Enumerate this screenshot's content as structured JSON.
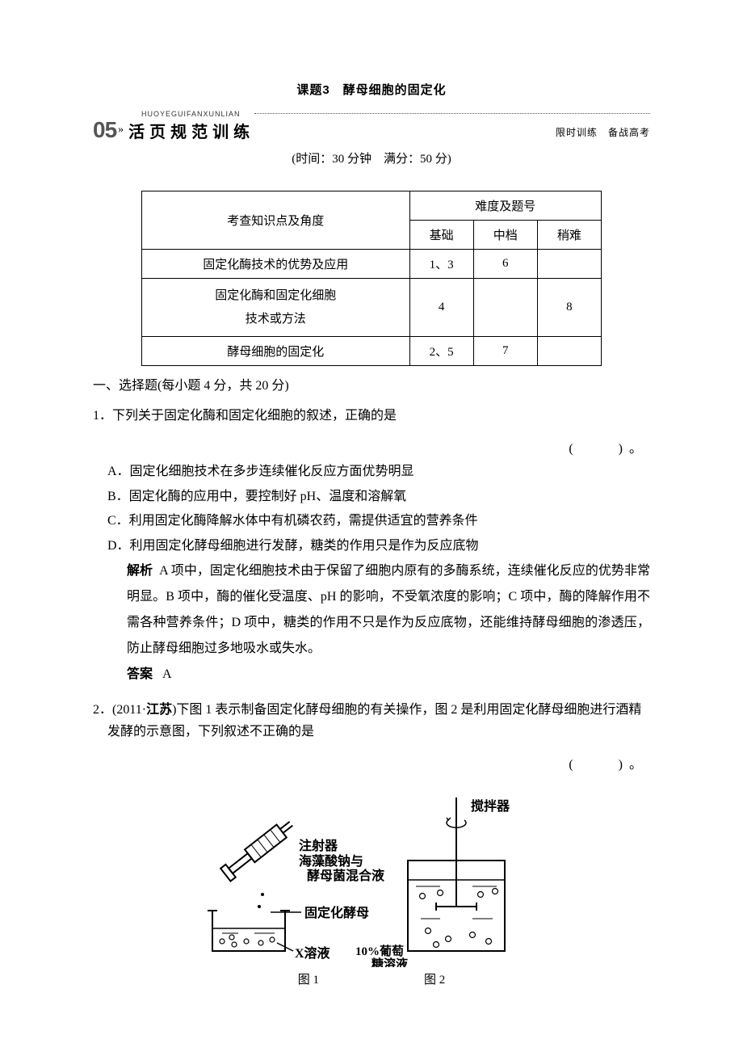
{
  "title": "课题3　酵母细胞的固定化",
  "header": {
    "num": "05",
    "arrow": "»",
    "pinyin": "HUOYEGUIFANXUNLIAN",
    "main": "活页规范训练",
    "right": "限时训练　备战高考"
  },
  "timing": "(时间：30 分钟　满分：50 分)",
  "table": {
    "col1_header": "考查知识点及角度",
    "col2_header": "难度及题号",
    "subheaders": [
      "基础",
      "中档",
      "稍难"
    ],
    "rows": [
      {
        "topic": "固定化酶技术的优势及应用",
        "cells": [
          "1、3",
          "6",
          ""
        ]
      },
      {
        "topic": "固定化酶和固定化细胞\n技术或方法",
        "cells": [
          "4",
          "",
          "8"
        ]
      },
      {
        "topic": "酵母细胞的固定化",
        "cells": [
          "2、5",
          "7",
          ""
        ]
      }
    ]
  },
  "section1": "一、选择题(每小题 4 分，共 20 分)",
  "q1": {
    "stem": "1．下列关于固定化酶和固定化细胞的叙述，正确的是",
    "paren": "(　　)。",
    "options": {
      "A": "A．固定化细胞技术在多步连续催化反应方面优势明显",
      "B": "B．固定化酶的应用中，要控制好 pH、温度和溶解氧",
      "C": "C．利用固定化酶降解水体中有机磷农药，需提供适宜的营养条件",
      "D": "D．利用固定化酵母细胞进行发酵，糖类的作用只是作为反应底物"
    },
    "explain_label": "解析",
    "explain": "A 项中，固定化细胞技术由于保留了细胞内原有的多酶系统，连续催化反应的优势非常明显。B 项中，酶的催化受温度、pH 的影响，不受氧浓度的影响；C 项中，酶的降解作用不需各种营养条件；D 项中，糖类的作用不只是作为反应底物，还能维持酵母细胞的渗透压，防止酵母细胞过多地吸水或失水。",
    "answer_label": "答案",
    "answer": "A"
  },
  "q2": {
    "stem_part1": "2．(2011·",
    "stem_bold": "江苏",
    "stem_part2": ")下图 1 表示制备固定化酵母细胞的有关操作，图 2 是利用固定化酵母细胞进行酒精发酵的示意图，下列叙述不正确的是",
    "paren": "(　　)。"
  },
  "diagram": {
    "labels": {
      "syringe": "注射器",
      "mix1": "海藻酸钠与",
      "mix2": "酵母菌混合液",
      "yeast": "固定化酵母",
      "xsol": "X溶液",
      "glucose1": "10%葡萄",
      "glucose2": "糖溶液",
      "stirrer": "搅拌器"
    },
    "captions": {
      "fig1": "图 1",
      "fig2": "图 2"
    },
    "colors": {
      "stroke": "#000000",
      "fill_bg": "#ffffff"
    }
  }
}
